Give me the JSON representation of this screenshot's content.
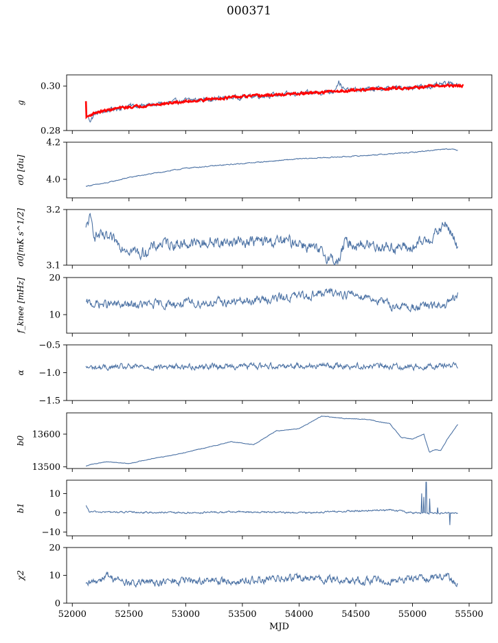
{
  "title": "000371",
  "colors": {
    "series": "#4c72a4",
    "fit": "#ff0000",
    "axis": "#000000"
  },
  "chart_data": {
    "type": "line",
    "title": "000371",
    "xlabel": "MJD",
    "xlim": [
      51950,
      55700
    ],
    "xticks": [
      52000,
      52500,
      53000,
      53500,
      54000,
      54500,
      55000,
      55500
    ],
    "xtick_labels": [
      "52000",
      "52500",
      "53000",
      "53500",
      "54000",
      "54500",
      "55000",
      "55500"
    ],
    "panels": [
      {
        "id": "g",
        "ylabel": "g",
        "ylim": [
          0.28,
          0.305
        ],
        "yticks": [
          0.28,
          0.3
        ],
        "ytick_labels": [
          "0.28",
          "0.30"
        ],
        "series": [
          {
            "name": "g",
            "color": "#4c72a4",
            "noise": 0.0008,
            "points": [
              [
                52120,
                0.2875
              ],
              [
                52160,
                0.2845
              ],
              [
                52200,
                0.2875
              ],
              [
                52350,
                0.2895
              ],
              [
                52500,
                0.291
              ],
              [
                52700,
                0.2915
              ],
              [
                53000,
                0.2935
              ],
              [
                53300,
                0.2945
              ],
              [
                53600,
                0.2955
              ],
              [
                54000,
                0.2965
              ],
              [
                54300,
                0.2975
              ],
              [
                54350,
                0.302
              ],
              [
                54400,
                0.298
              ],
              [
                54600,
                0.2985
              ],
              [
                54800,
                0.299
              ],
              [
                55000,
                0.2995
              ],
              [
                55200,
                0.3
              ],
              [
                55300,
                0.301
              ],
              [
                55400,
                0.301
              ]
            ]
          },
          {
            "name": "g_fit",
            "color": "#ff0000",
            "noise": 0.0004,
            "points": [
              [
                52120,
                0.293
              ],
              [
                52125,
                0.286
              ],
              [
                52200,
                0.288
              ],
              [
                52400,
                0.29
              ],
              [
                52700,
                0.2915
              ],
              [
                53000,
                0.293
              ],
              [
                53300,
                0.2945
              ],
              [
                53600,
                0.2955
              ],
              [
                54000,
                0.2965
              ],
              [
                54300,
                0.2975
              ],
              [
                54600,
                0.2985
              ],
              [
                55000,
                0.2993
              ],
              [
                55300,
                0.3002
              ],
              [
                55450,
                0.3
              ]
            ]
          }
        ]
      },
      {
        "id": "sigma0_du",
        "ylabel": "σ0 [du]",
        "ylim": [
          3.9,
          4.2
        ],
        "yticks": [
          4.0,
          4.2
        ],
        "ytick_labels": [
          "4.0",
          "4.2"
        ],
        "series": [
          {
            "name": "sigma0_du",
            "color": "#4c72a4",
            "noise": 0.002,
            "points": [
              [
                52120,
                3.963
              ],
              [
                52300,
                3.98
              ],
              [
                52500,
                4.01
              ],
              [
                52800,
                4.04
              ],
              [
                53000,
                4.06
              ],
              [
                53500,
                4.085
              ],
              [
                54000,
                4.11
              ],
              [
                54500,
                4.125
              ],
              [
                55000,
                4.145
              ],
              [
                55300,
                4.165
              ],
              [
                55400,
                4.158
              ]
            ]
          }
        ]
      },
      {
        "id": "sigma0_mk",
        "ylabel": "σ0[mK s^1/2]",
        "ylim": [
          3.1,
          3.2
        ],
        "yticks": [
          3.1,
          3.2
        ],
        "ytick_labels": [
          "3.1",
          "3.2"
        ],
        "series": [
          {
            "name": "sigma0_mk",
            "color": "#4c72a4",
            "noise": 0.008,
            "points": [
              [
                52120,
                3.163
              ],
              [
                52150,
                3.185
              ],
              [
                52200,
                3.155
              ],
              [
                52400,
                3.14
              ],
              [
                52600,
                3.12
              ],
              [
                52800,
                3.14
              ],
              [
                53000,
                3.138
              ],
              [
                53500,
                3.143
              ],
              [
                54000,
                3.142
              ],
              [
                54350,
                3.105
              ],
              [
                54400,
                3.14
              ],
              [
                55000,
                3.13
              ],
              [
                55200,
                3.155
              ],
              [
                55300,
                3.175
              ],
              [
                55400,
                3.13
              ]
            ]
          }
        ]
      },
      {
        "id": "fknee",
        "ylabel": "f_knee [mHz]",
        "ylim": [
          5,
          20
        ],
        "yticks": [
          10,
          20
        ],
        "ytick_labels": [
          "10",
          "20"
        ],
        "series": [
          {
            "name": "fknee",
            "color": "#4c72a4",
            "noise": 0.9,
            "points": [
              [
                52120,
                13
              ],
              [
                52500,
                12.5
              ],
              [
                53000,
                13
              ],
              [
                53500,
                13.5
              ],
              [
                54000,
                15
              ],
              [
                54300,
                16
              ],
              [
                54600,
                15
              ],
              [
                54800,
                12.5
              ],
              [
                55000,
                12
              ],
              [
                55300,
                12.5
              ],
              [
                55400,
                15
              ]
            ]
          }
        ]
      },
      {
        "id": "alpha",
        "ylabel": "α",
        "ylim": [
          -1.5,
          -0.5
        ],
        "yticks": [
          -1.5,
          -1.0,
          -0.5
        ],
        "ytick_labels": [
          "−1.5",
          "−1.0",
          "−0.5"
        ],
        "series": [
          {
            "name": "alpha",
            "color": "#4c72a4",
            "noise": 0.04,
            "points": [
              [
                52120,
                -0.91
              ],
              [
                53000,
                -0.89
              ],
              [
                54000,
                -0.87
              ],
              [
                55000,
                -0.89
              ],
              [
                55400,
                -0.86
              ]
            ]
          }
        ]
      },
      {
        "id": "b0",
        "ylabel": "b0",
        "ylim": [
          13495,
          13665
        ],
        "yticks": [
          13500,
          13600
        ],
        "ytick_labels": [
          "13500",
          "13600"
        ],
        "series": [
          {
            "name": "b0",
            "color": "#4c72a4",
            "noise": 0.7,
            "points": [
              [
                52120,
                13502
              ],
              [
                52150,
                13506
              ],
              [
                52300,
                13516
              ],
              [
                52500,
                13510
              ],
              [
                52700,
                13525
              ],
              [
                52900,
                13537
              ],
              [
                53200,
                13560
              ],
              [
                53400,
                13577
              ],
              [
                53600,
                13568
              ],
              [
                53800,
                13610
              ],
              [
                54000,
                13617
              ],
              [
                54200,
                13655
              ],
              [
                54400,
                13648
              ],
              [
                54600,
                13645
              ],
              [
                54800,
                13632
              ],
              [
                54900,
                13590
              ],
              [
                55000,
                13585
              ],
              [
                55100,
                13600
              ],
              [
                55150,
                13545
              ],
              [
                55200,
                13553
              ],
              [
                55250,
                13550
              ],
              [
                55300,
                13580
              ],
              [
                55400,
                13630
              ]
            ]
          }
        ]
      },
      {
        "id": "b1",
        "ylabel": "b1",
        "ylim": [
          -12,
          17
        ],
        "yticks": [
          -10,
          0,
          10
        ],
        "ytick_labels": [
          "−10",
          "0",
          "10"
        ],
        "series": [
          {
            "name": "b1",
            "color": "#4c72a4",
            "noise": 0.35,
            "points": [
              [
                52120,
                3.5
              ],
              [
                52150,
                0.5
              ],
              [
                53000,
                0
              ],
              [
                53500,
                0.5
              ],
              [
                54000,
                0
              ],
              [
                54800,
                1.5
              ],
              [
                55000,
                0
              ],
              [
                55100,
                0
              ],
              [
                55200,
                0
              ],
              [
                55400,
                0
              ]
            ]
          }
        ]
      },
      {
        "id": "chi2",
        "ylabel": "χ2",
        "ylim": [
          0,
          20
        ],
        "yticks": [
          0,
          10,
          20
        ],
        "ytick_labels": [
          "0",
          "10",
          "20"
        ],
        "series": [
          {
            "name": "chi2",
            "color": "#4c72a4",
            "noise": 1.1,
            "points": [
              [
                52120,
                6
              ],
              [
                52300,
                10
              ],
              [
                52500,
                7
              ],
              [
                53000,
                8
              ],
              [
                53500,
                8
              ],
              [
                54000,
                9
              ],
              [
                54500,
                8
              ],
              [
                55000,
                8.5
              ],
              [
                55300,
                10
              ],
              [
                55400,
                6.5
              ]
            ]
          }
        ]
      }
    ]
  }
}
